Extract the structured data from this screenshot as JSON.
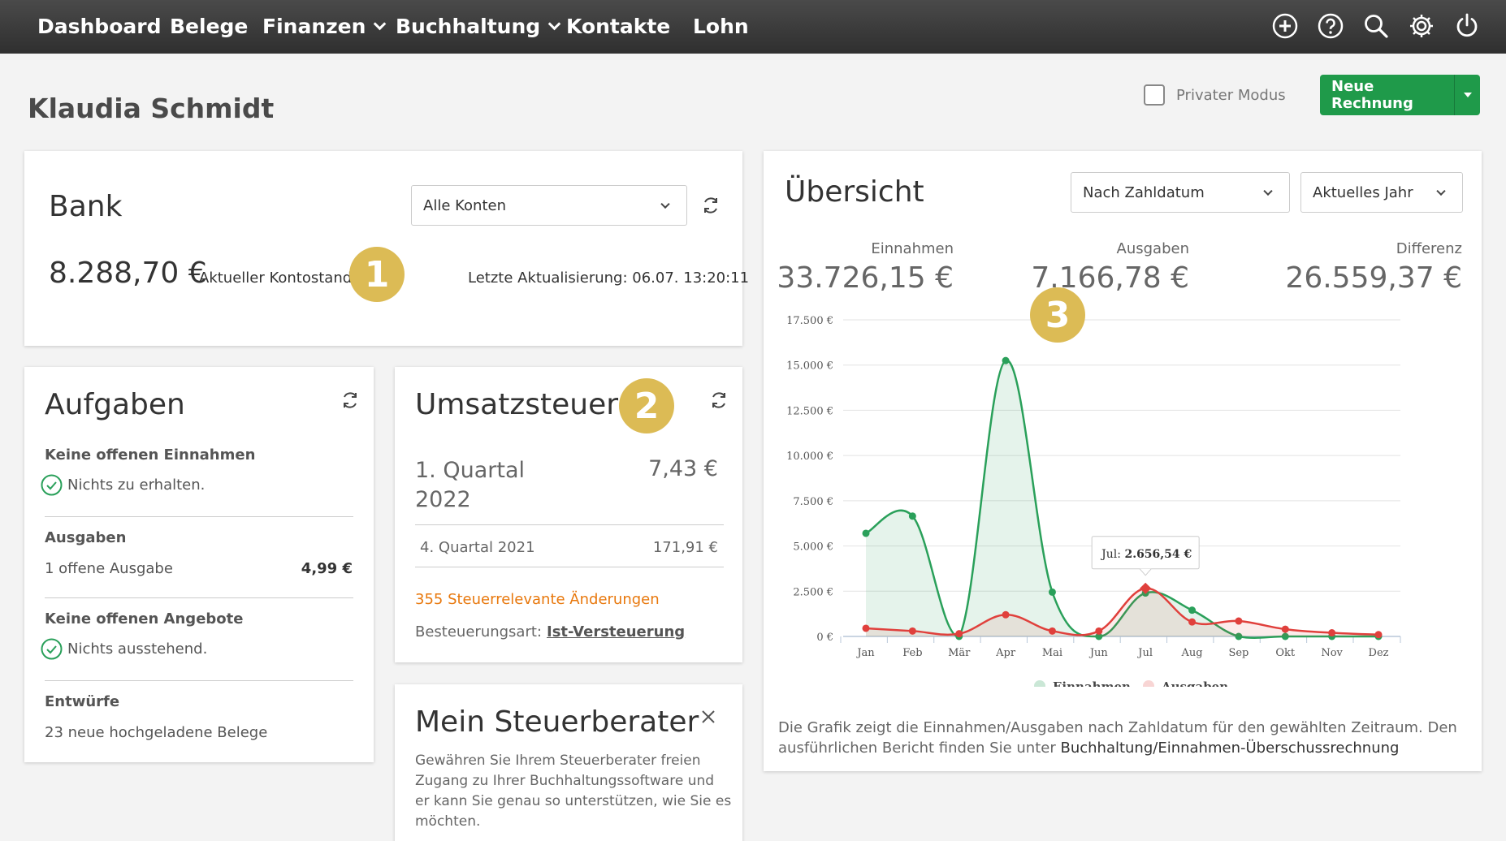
{
  "nav": {
    "items": [
      {
        "label": "Dashboard",
        "dropdown": false
      },
      {
        "label": "Belege",
        "dropdown": false
      },
      {
        "label": "Finanzen",
        "dropdown": true
      },
      {
        "label": "Buchhaltung",
        "dropdown": true
      },
      {
        "label": "Kontakte",
        "dropdown": false
      },
      {
        "label": "Lohn",
        "dropdown": false
      }
    ],
    "icons": [
      "plus-circle-icon",
      "help-icon",
      "search-icon",
      "gear-icon",
      "power-icon"
    ]
  },
  "header": {
    "user_name": "Klaudia Schmidt",
    "private_mode_label": "Privater Modus",
    "new_invoice_label": "Neue Rechnung"
  },
  "bank": {
    "title": "Bank",
    "account_select": "Alle Konten",
    "balance": "8.288,70 €",
    "balance_label": "Aktueller Kontostand",
    "last_update": "Letzte Aktualisierung: 06.07.  13:20:11",
    "badge": "1"
  },
  "tasks": {
    "title": "Aufgaben",
    "sections": [
      {
        "heading": "Keine offenen Einnahmen",
        "text": "Nichts zu erhalten.",
        "check": true,
        "value": ""
      },
      {
        "heading": "Ausgaben",
        "text": "1  offene Ausgabe",
        "check": false,
        "value": "4,99 €"
      },
      {
        "heading": "Keine offenen Angebote",
        "text": "Nichts ausstehend.",
        "check": true,
        "value": ""
      },
      {
        "heading": "Entwürfe",
        "text": "23  neue hochgeladene Belege",
        "check": false,
        "value": ""
      }
    ]
  },
  "vat": {
    "title": "Umsatzsteuer",
    "badge": "2",
    "current_quarter": "1. Quartal 2022",
    "current_value": "7,43 €",
    "prev_quarter": "4. Quartal 2021",
    "prev_value": "171,91 €",
    "changes_link": "355 Steuerrelevante Änderungen",
    "taxation_label": "Besteuerungsart:",
    "taxation_value": "Ist-Versteuerung"
  },
  "advisor": {
    "title": "Mein Steuerberater",
    "text": "Gewähren Sie Ihrem Steuerberater freien Zugang zu Ihrer Buchhaltungssoftware und er kann Sie genau so unterstützen,  wie Sie es möchten."
  },
  "overview": {
    "title": "Übersicht",
    "filter_date": "Nach Zahldatum",
    "filter_period": "Aktuelles Jahr",
    "badge": "3",
    "stats": [
      {
        "label": "Einnahmen",
        "value": "33.726,15 €"
      },
      {
        "label": "Ausgaben",
        "value": "7.166,78 €"
      },
      {
        "label": "Differenz",
        "value": "26.559,37 €"
      }
    ],
    "caption_text": "Die Grafik zeigt die Einnahmen/Ausgaben nach Zahldatum für den gewählten Zeitraum. Den ausführlichen Bericht finden Sie unter ",
    "caption_link": "Buchhaltung/Einnahmen-Überschussrechnung"
  },
  "colors": {
    "nav_bg": "#3a3a3a",
    "accent_green": "#1f9a4a",
    "badge_gold": "#dcbb55",
    "income_line": "#2aa05a",
    "expense_line": "#e0403c",
    "link_orange": "#e8780d"
  },
  "chart_data": {
    "type": "area",
    "categories": [
      "Jan",
      "Feb",
      "Mär",
      "Apr",
      "Mai",
      "Jun",
      "Jul",
      "Aug",
      "Sep",
      "Okt",
      "Nov",
      "Dez"
    ],
    "series": [
      {
        "name": "Einnahmen",
        "values": [
          5700,
          6650,
          0,
          15250,
          2450,
          0,
          2400,
          1450,
          0,
          0,
          0,
          0
        ]
      },
      {
        "name": "Ausgaben",
        "values": [
          450,
          300,
          150,
          1200,
          300,
          300,
          2656.54,
          800,
          850,
          400,
          200,
          100
        ]
      }
    ],
    "ylim": [
      0,
      17500
    ],
    "yticks": [
      "0 €",
      "2.500 €",
      "5.000 €",
      "7.500 €",
      "10.000 €",
      "12.500 €",
      "15.000 €",
      "17.500 €"
    ],
    "ytick_values": [
      0,
      2500,
      5000,
      7500,
      10000,
      12500,
      15000,
      17500
    ],
    "tooltip": {
      "month": "Jul",
      "label": "Jul:",
      "value": "2.656,54 €"
    },
    "legend_position": "bottom",
    "grid": true
  }
}
